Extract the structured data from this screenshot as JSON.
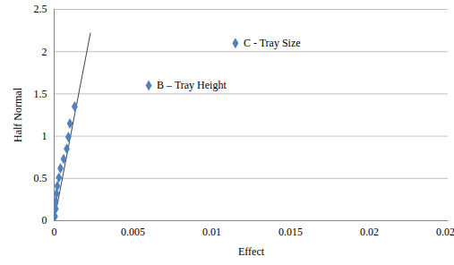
{
  "chart_data": {
    "type": "scatter",
    "x_label": "Effect",
    "y_label": "Half Normal",
    "x": [
      5e-05,
      0.0001,
      0.0001,
      0.00015,
      0.0002,
      0.0003,
      0.0004,
      0.0006,
      0.0008,
      0.0009,
      0.001,
      0.0013,
      0.006,
      0.0115
    ],
    "values": [
      0.05,
      0.14,
      0.23,
      0.32,
      0.41,
      0.51,
      0.62,
      0.73,
      0.85,
      0.99,
      1.15,
      1.35,
      1.6,
      2.1
    ],
    "color": "#4f81bd",
    "marker": "diamond",
    "fit_line": {
      "x": [
        0,
        0.0023
      ],
      "y": [
        0,
        2.22
      ]
    },
    "annotations": [
      {
        "text": "B – Tray Height",
        "x": 0.006,
        "y": 1.6
      },
      {
        "text": "C - Tray Size",
        "x": 0.0115,
        "y": 2.1
      }
    ],
    "xlim": [
      0,
      0.025
    ],
    "xticks": [
      0,
      0.005,
      0.01,
      0.015,
      0.02,
      0.025
    ],
    "ylim": [
      0,
      2.5
    ],
    "yticks": [
      0,
      0.5,
      1,
      1.5,
      2,
      2.5
    ],
    "grid": true
  }
}
